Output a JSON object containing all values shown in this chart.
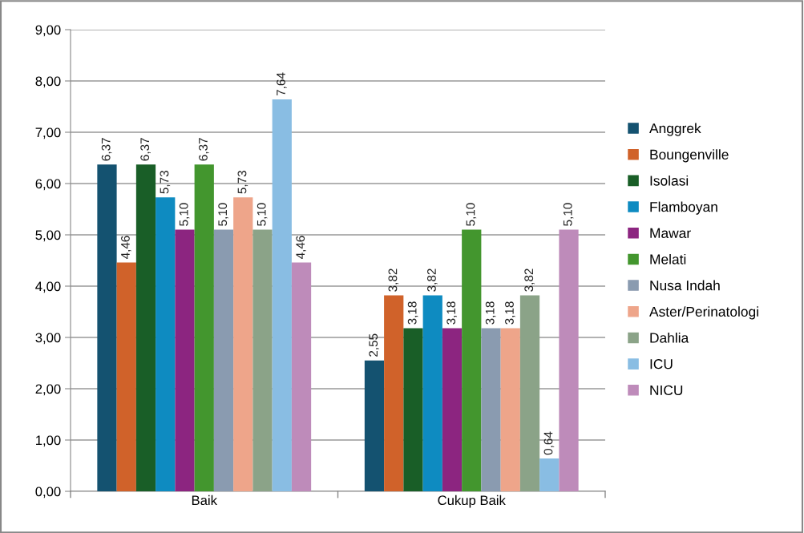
{
  "chart_data": {
    "type": "bar",
    "categories": [
      "Baik",
      "Cukup Baik"
    ],
    "series": [
      {
        "name": "Anggrek",
        "color": "#145270",
        "values": [
          6.37,
          2.55
        ],
        "value_labels": [
          "6,37",
          "2,55"
        ]
      },
      {
        "name": "Boungenville",
        "color": "#d0622a",
        "values": [
          4.46,
          3.82
        ],
        "value_labels": [
          "4,46",
          "3,82"
        ]
      },
      {
        "name": "Isolasi",
        "color": "#195e27",
        "values": [
          6.37,
          3.18
        ],
        "value_labels": [
          "6,37",
          "3,18"
        ]
      },
      {
        "name": "Flamboyan",
        "color": "#0e8bc1",
        "values": [
          5.73,
          3.82
        ],
        "value_labels": [
          "5,73",
          "3,82"
        ]
      },
      {
        "name": "Mawar",
        "color": "#8c2580",
        "values": [
          5.1,
          3.18
        ],
        "value_labels": [
          "5,10",
          "3,18"
        ]
      },
      {
        "name": "Melati",
        "color": "#43962e",
        "values": [
          6.37,
          5.1
        ],
        "value_labels": [
          "6,37",
          "5,10"
        ]
      },
      {
        "name": "Nusa Indah",
        "color": "#8a9bb0",
        "values": [
          5.1,
          3.18
        ],
        "value_labels": [
          "5,10",
          "3,18"
        ]
      },
      {
        "name": "Aster/Perinatologi",
        "color": "#eea58a",
        "values": [
          5.73,
          3.18
        ],
        "value_labels": [
          "5,73",
          "3,18"
        ]
      },
      {
        "name": "Dahlia",
        "color": "#8ba388",
        "values": [
          5.1,
          3.82
        ],
        "value_labels": [
          "5,10",
          "3,82"
        ]
      },
      {
        "name": "ICU",
        "color": "#89bde3",
        "values": [
          7.64,
          0.64
        ],
        "value_labels": [
          "7,64",
          "0,64"
        ]
      },
      {
        "name": "NICU",
        "color": "#be8bba",
        "values": [
          4.46,
          5.1
        ],
        "value_labels": [
          "4,46",
          "5,10"
        ]
      }
    ],
    "ylim": [
      0,
      9
    ],
    "yticks": [
      {
        "value": 0,
        "label": "0,00"
      },
      {
        "value": 1,
        "label": "1,00"
      },
      {
        "value": 2,
        "label": "2,00"
      },
      {
        "value": 3,
        "label": "3,00"
      },
      {
        "value": 4,
        "label": "4,00"
      },
      {
        "value": 5,
        "label": "5,00"
      },
      {
        "value": 6,
        "label": "6,00"
      },
      {
        "value": 7,
        "label": "7,00"
      },
      {
        "value": 8,
        "label": "8,00"
      },
      {
        "value": 9,
        "label": "9,00"
      }
    ],
    "grid": "y",
    "legend": "right"
  }
}
